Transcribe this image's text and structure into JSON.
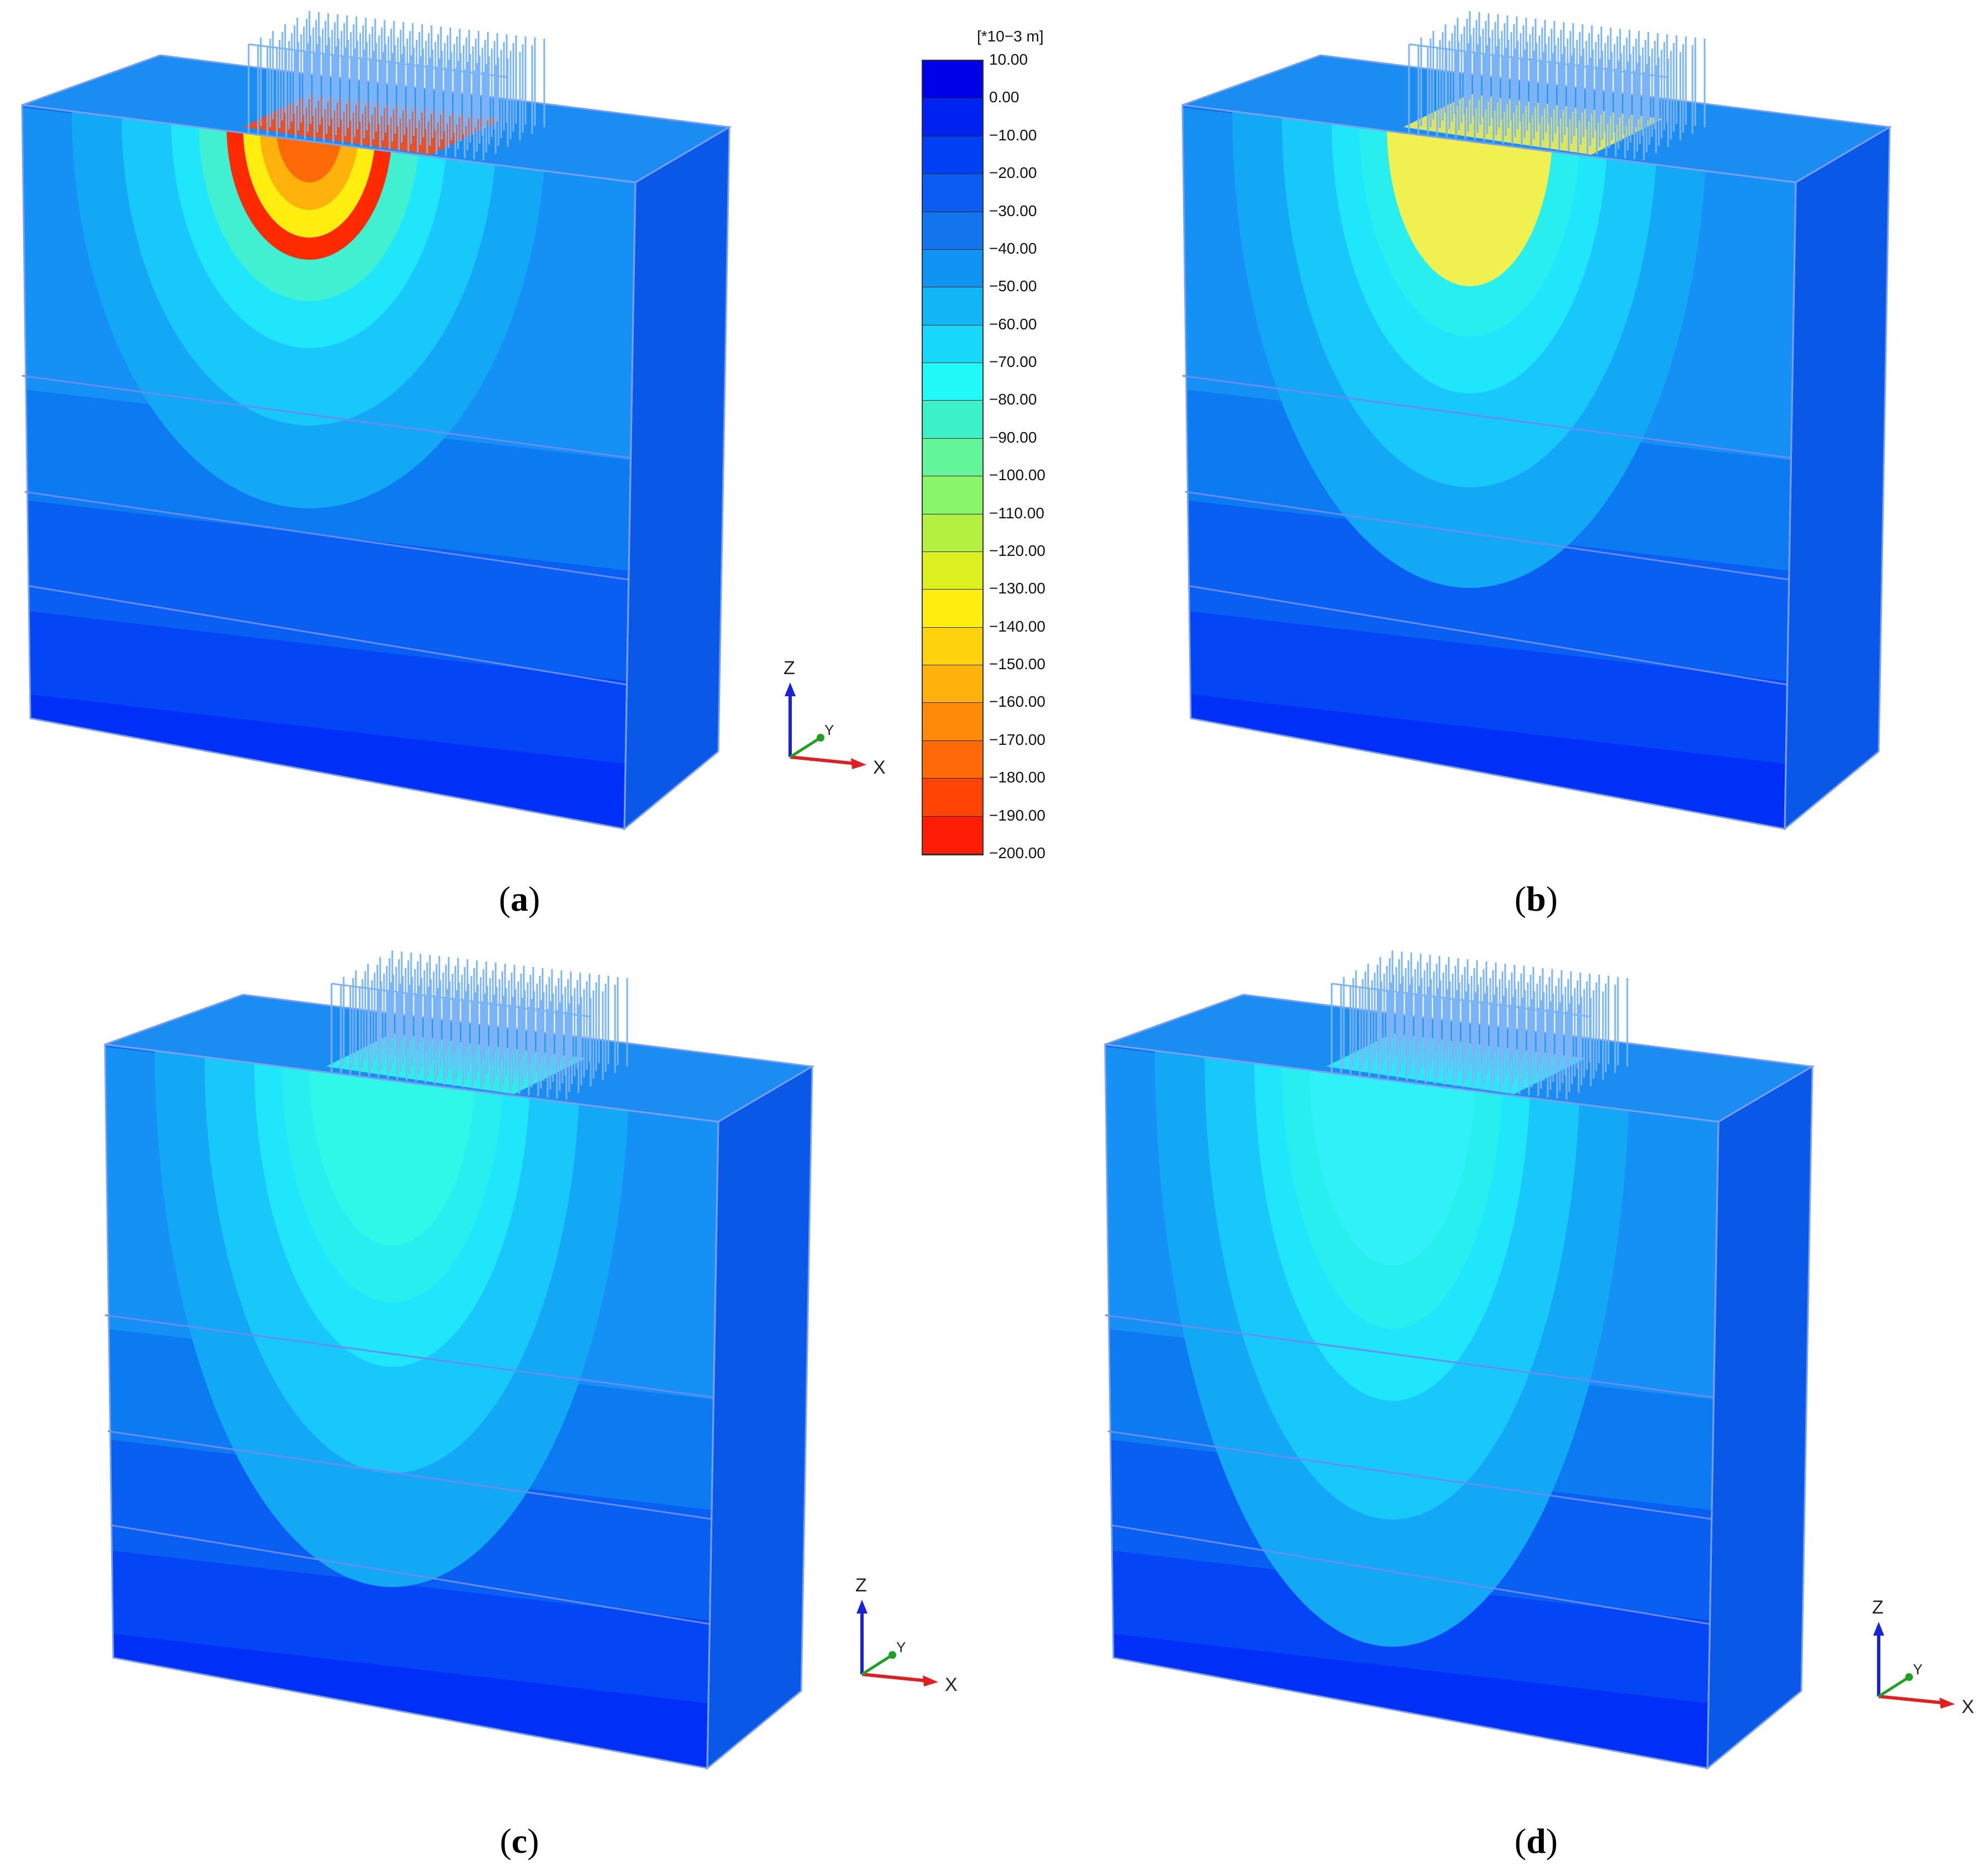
{
  "legend": {
    "unit": "[*10−3 m]",
    "ticks": [
      "10.00",
      "0.00",
      "−10.00",
      "−20.00",
      "−30.00",
      "−40.00",
      "−50.00",
      "−60.00",
      "−70.00",
      "−80.00",
      "−90.00",
      "−100.00",
      "−110.00",
      "−120.00",
      "−130.00",
      "−140.00",
      "−150.00",
      "−160.00",
      "−170.00",
      "−180.00",
      "−190.00",
      "−200.00"
    ],
    "colors": [
      "#0000e6",
      "#0022f0",
      "#0040f5",
      "#0a5cf2",
      "#1275ee",
      "#1094f3",
      "#12b6f7",
      "#18d8fb",
      "#22fafa",
      "#3cf0c8",
      "#62f59a",
      "#88f56a",
      "#b4f040",
      "#dcf020",
      "#ffee10",
      "#ffd20e",
      "#ffb20c",
      "#ff8a0a",
      "#ff6a08",
      "#ff4406",
      "#ff1c04"
    ]
  },
  "axes": {
    "z": "Z",
    "y": "Y",
    "x": "X"
  },
  "panels": [
    {
      "id": "a",
      "caption": "a",
      "peak": "#ff2a00"
    },
    {
      "id": "b",
      "caption": "b",
      "peak": "#f0f050"
    },
    {
      "id": "c",
      "caption": "c",
      "peak": "#30f8e8"
    },
    {
      "id": "d",
      "caption": "d",
      "peak": "#30f0f8"
    }
  ]
}
